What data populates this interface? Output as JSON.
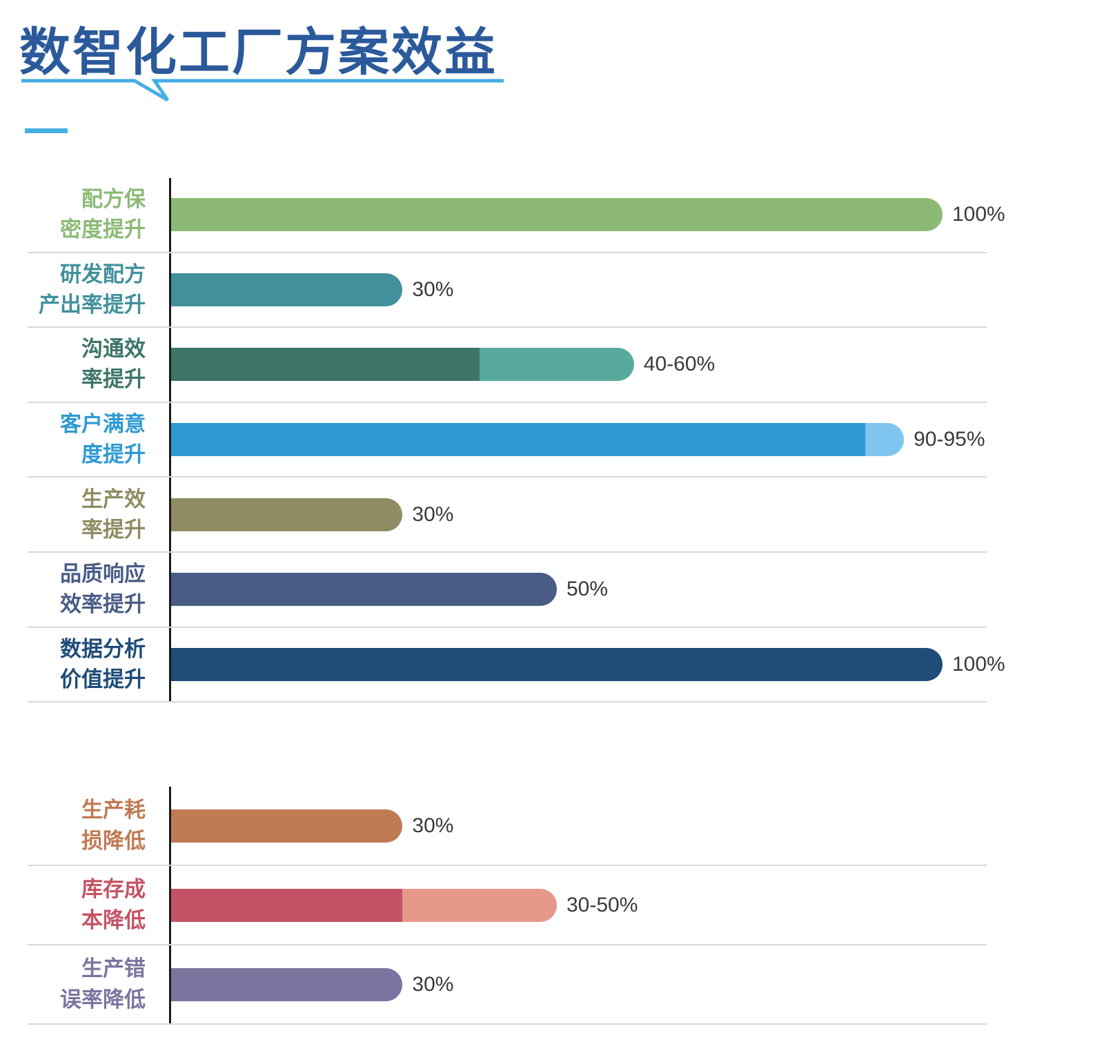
{
  "header": {
    "title": "数智化工厂方案效益"
  },
  "theme": {
    "title_blue": "#2B5A9B",
    "underline_blue": "#45AEE4",
    "axis": "#1A1A1A",
    "separator": "#D9D9D9",
    "value_text": "#3A3A3A",
    "background": "#FFFFFF"
  },
  "chart_data": {
    "type": "bar",
    "orientation": "horizontal",
    "unit": "%",
    "axis_range": [
      0,
      100
    ],
    "grid": "row-separators-only",
    "legend": "none",
    "title": "数智化工厂方案效益",
    "groups": [
      {
        "name": "improvements",
        "rows": [
          {
            "label": "配方保密度提升",
            "label_lines": [
              "配方保",
              "密度提升"
            ],
            "value": 100,
            "value2": null,
            "value_label": "100%",
            "color": "#8CBA76",
            "color2": null
          },
          {
            "label": "研发配方产出率提升",
            "label_lines": [
              "研发配方",
              "产出率提升"
            ],
            "value": 30,
            "value2": null,
            "value_label": "30%",
            "color": "#41909C",
            "color2": null
          },
          {
            "label": "沟通效率提升",
            "label_lines": [
              "沟通效",
              "率提升"
            ],
            "value": 40,
            "value2": 60,
            "value_label": "40-60%",
            "color": "#3D7568",
            "color2": "#58AB9C"
          },
          {
            "label": "客户满意度提升",
            "label_lines": [
              "客户满意",
              "度提升"
            ],
            "value": 90,
            "value2": 95,
            "value_label": "90-95%",
            "color": "#2E9AD2",
            "color2": "#7FC5EF"
          },
          {
            "label": "生产效率提升",
            "label_lines": [
              "生产效",
              "率提升"
            ],
            "value": 30,
            "value2": null,
            "value_label": "30%",
            "color": "#8F8C63",
            "color2": null
          },
          {
            "label": "品质响应效率提升",
            "label_lines": [
              "品质响应",
              "效率提升"
            ],
            "value": 50,
            "value2": null,
            "value_label": "50%",
            "color": "#495C85",
            "color2": null
          },
          {
            "label": "数据分析价值提升",
            "label_lines": [
              "数据分析",
              "价值提升"
            ],
            "value": 100,
            "value2": null,
            "value_label": "100%",
            "color": "#1F4C78",
            "color2": null
          }
        ]
      },
      {
        "name": "reductions",
        "rows": [
          {
            "label": "生产耗损降低",
            "label_lines": [
              "生产耗",
              "损降低"
            ],
            "value": 30,
            "value2": null,
            "value_label": "30%",
            "color": "#C07A54",
            "color2": null
          },
          {
            "label": "库存成本降低",
            "label_lines": [
              "库存成",
              "本降低"
            ],
            "value": 30,
            "value2": 50,
            "value_label": "30-50%",
            "color": "#C45365",
            "color2": "#E6988A"
          },
          {
            "label": "生产错误率降低",
            "label_lines": [
              "生产错",
              "误率降低"
            ],
            "value": 30,
            "value2": null,
            "value_label": "30%",
            "color": "#7C749E",
            "color2": null
          }
        ]
      }
    ]
  }
}
